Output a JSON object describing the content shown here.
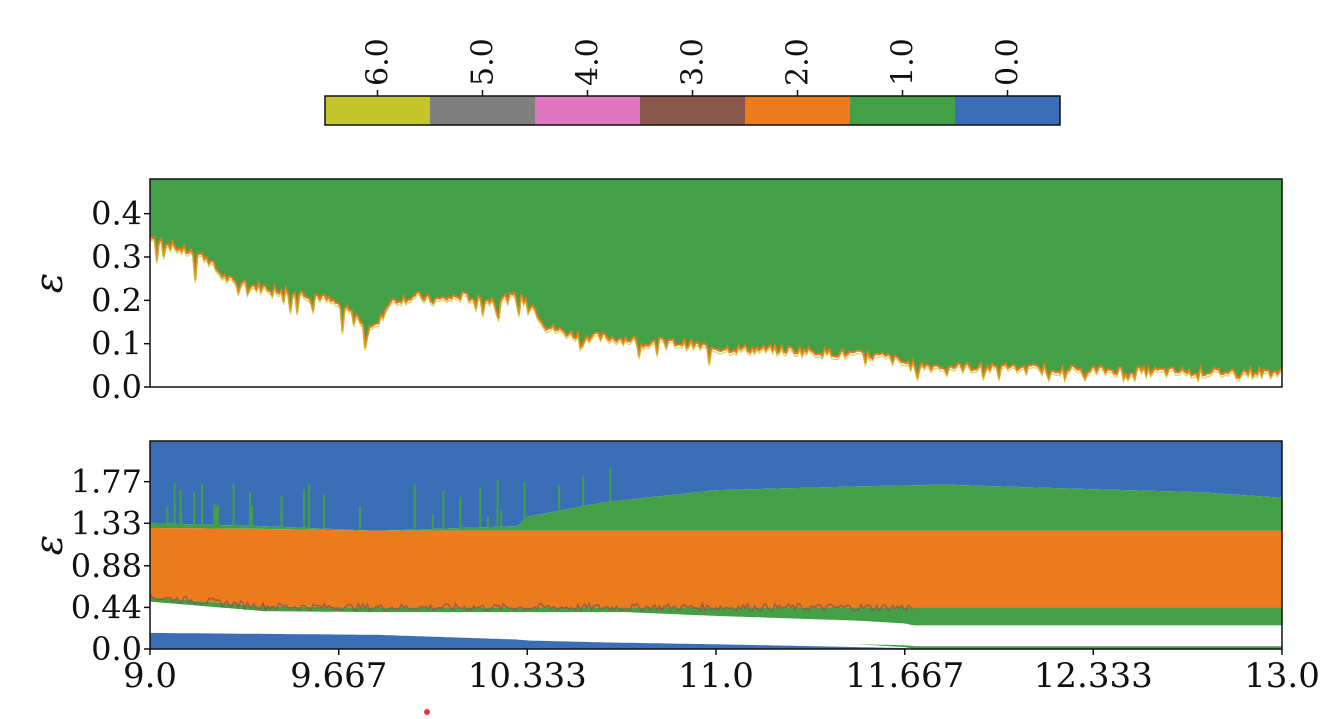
{
  "chart_data": [
    {
      "type": "colorbar",
      "ticks": [
        "6.0",
        "5.0",
        "4.0",
        "3.0",
        "2.0",
        "1.0",
        "0.0"
      ],
      "colors": [
        "#c4c52a",
        "#7f7f7f",
        "#de77c0",
        "#8c574b",
        "#eb7b1c",
        "#43a047",
        "#3a6fb8"
      ]
    },
    {
      "type": "area",
      "panel": "top",
      "ylabel": "ε",
      "ylim": [
        0.0,
        0.48
      ],
      "xlim": [
        9.0,
        13.0
      ],
      "ytick_labels": [
        "0.0",
        "0.1",
        "0.2",
        "0.3",
        "0.4"
      ],
      "yticks": [
        0.0,
        0.1,
        0.2,
        0.3,
        0.4
      ],
      "x": [
        9.0,
        9.1,
        9.2,
        9.25,
        9.3,
        9.4,
        9.5,
        9.6,
        9.7,
        9.75,
        9.8,
        9.85,
        9.95,
        10.0,
        10.1,
        10.2,
        10.3,
        10.35,
        10.4,
        10.5,
        10.7,
        10.9,
        11.0,
        11.3,
        11.6,
        11.7,
        12.0,
        12.333,
        12.7,
        13.0
      ],
      "series": [
        {
          "color": "#43a047",
          "lower_boundary": [
            0.35,
            0.32,
            0.3,
            0.26,
            0.24,
            0.23,
            0.22,
            0.21,
            0.18,
            0.15,
            0.14,
            0.2,
            0.21,
            0.2,
            0.21,
            0.2,
            0.21,
            0.19,
            0.14,
            0.12,
            0.11,
            0.1,
            0.09,
            0.085,
            0.07,
            0.05,
            0.045,
            0.04,
            0.035,
            0.035
          ]
        }
      ]
    },
    {
      "type": "area",
      "panel": "bottom",
      "ylabel": "ε",
      "ylim": [
        0.0,
        2.2
      ],
      "xlim": [
        9.0,
        13.0
      ],
      "ytick_labels": [
        "0.0",
        "0.44",
        "0.88",
        "1.33",
        "1.77"
      ],
      "yticks": [
        0.0,
        0.44,
        0.88,
        1.33,
        1.77
      ],
      "xtick_labels": [
        "9.0",
        "9.667",
        "10.333",
        "11.0",
        "11.667",
        "12.333",
        "13.0"
      ],
      "xticks": [
        9.0,
        9.667,
        10.333,
        11.0,
        11.667,
        12.333,
        13.0
      ],
      "x": [
        9.0,
        9.4,
        9.8,
        10.3,
        10.333,
        10.6,
        11.0,
        11.5,
        11.667,
        11.7,
        11.8,
        12.0,
        12.333,
        12.7,
        13.0
      ],
      "series": [
        {
          "color": "#3a6fb8",
          "region": "top",
          "lower_boundary": [
            1.33,
            1.3,
            1.25,
            1.3,
            1.4,
            1.55,
            1.68,
            1.72,
            1.73,
            1.73,
            1.74,
            1.72,
            1.69,
            1.66,
            1.6
          ]
        },
        {
          "color": "#43a047",
          "region": "upper",
          "lower_boundary": [
            1.28,
            1.27,
            1.25,
            1.25,
            1.25,
            1.25,
            1.25,
            1.25,
            1.25,
            1.25,
            1.25,
            1.25,
            1.25,
            1.25,
            1.25
          ]
        },
        {
          "color": "#eb7b1c",
          "region": "middle",
          "lower_boundary": [
            0.55,
            0.45,
            0.44,
            0.44,
            0.44,
            0.44,
            0.44,
            0.44,
            0.44,
            0.44,
            0.44,
            0.44,
            0.44,
            0.44,
            0.44
          ]
        },
        {
          "color": "#43a047",
          "region": "lower",
          "lower_boundary": [
            0.5,
            0.4,
            0.35,
            0.2,
            0.18,
            0.15,
            0.1,
            0.05,
            0.02,
            0.0,
            0.0,
            0.0,
            0.0,
            0.0,
            0.0
          ]
        },
        {
          "color": "#3a6fb8",
          "region": "bottom",
          "upper_boundary": [
            0.17,
            0.16,
            0.15,
            0.1,
            0.09,
            0.07,
            0.05,
            0.02,
            0.01,
            0.0,
            0.0,
            0.0,
            0.0,
            0.0,
            0.0
          ]
        }
      ]
    }
  ],
  "annotation_marker": {
    "color": "#e53935"
  }
}
